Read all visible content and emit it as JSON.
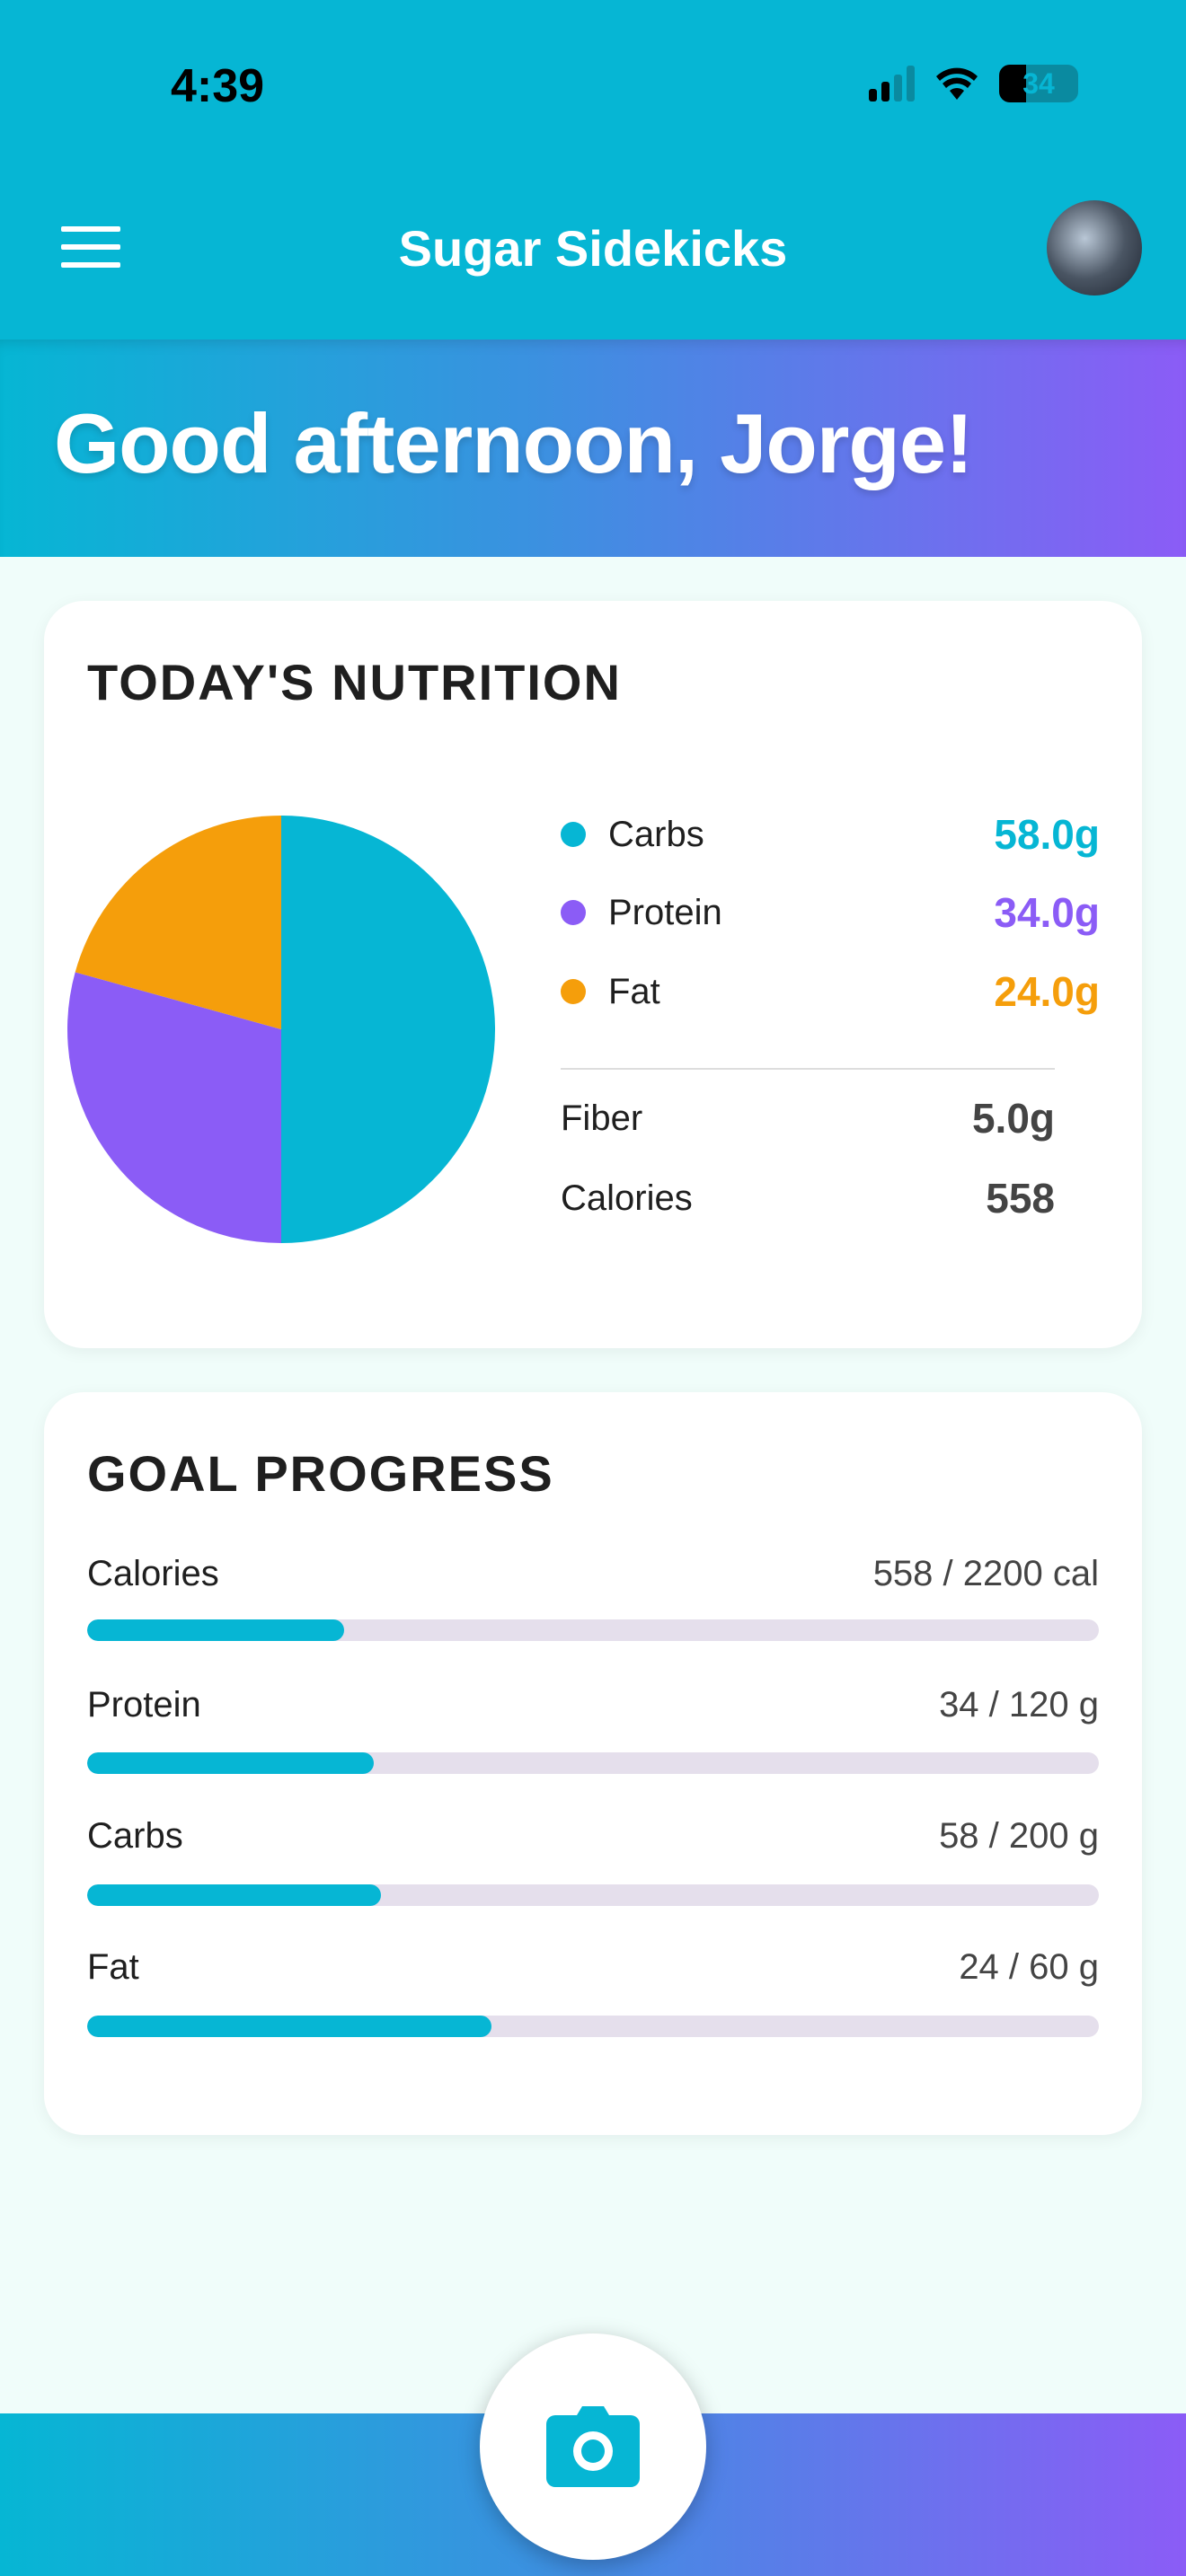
{
  "status_bar": {
    "time": "4:39",
    "battery": "34",
    "signal_bars": 2,
    "signal_total": 4
  },
  "header": {
    "title": "Sugar Sidekicks",
    "menu_icon": "hamburger-icon",
    "avatar_icon": "user-avatar"
  },
  "greeting": "Good afternoon, Jorge!",
  "colors": {
    "accent": "#06b6d4",
    "carbs": "#06b6d4",
    "protein": "#8b5cf6",
    "fat": "#f59e0b",
    "gradient_end": "#8b5cf6"
  },
  "nutrition": {
    "title": "TODAY'S NUTRITION",
    "chart_data": {
      "type": "pie",
      "categories": [
        "Carbs",
        "Protein",
        "Fat"
      ],
      "values": [
        58.0,
        34.0,
        24.0
      ],
      "colors": [
        "#06b6d4",
        "#8b5cf6",
        "#f59e0b"
      ]
    },
    "legend": [
      {
        "label": "Carbs",
        "value": "58.0g",
        "color": "#06b6d4"
      },
      {
        "label": "Protein",
        "value": "34.0g",
        "color": "#8b5cf6"
      },
      {
        "label": "Fat",
        "value": "24.0g",
        "color": "#f59e0b"
      }
    ],
    "stats": [
      {
        "label": "Fiber",
        "value": "5.0g"
      },
      {
        "label": "Calories",
        "value": "558"
      }
    ]
  },
  "goals": {
    "title": "GOAL PROGRESS",
    "items": [
      {
        "label": "Calories",
        "value": "558 / 2200 cal",
        "progress": 0.254
      },
      {
        "label": "Protein",
        "value": "34 / 120 g",
        "progress": 0.283
      },
      {
        "label": "Carbs",
        "value": "58 / 200 g",
        "progress": 0.29
      },
      {
        "label": "Fat",
        "value": "24 / 60 g",
        "progress": 0.4
      }
    ]
  },
  "fab": {
    "icon": "camera-icon"
  }
}
